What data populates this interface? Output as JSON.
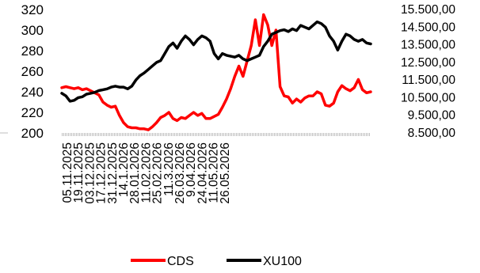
{
  "chart_data": {
    "type": "line",
    "title": "",
    "xlabel": "",
    "ylabel": "",
    "x_tick_labels": [
      "05.11.2025",
      "19.11.2025",
      "03.12.2025",
      "17.12.2025",
      "31.12.2025",
      "14.1.2026",
      "28.01.2026",
      "11.02.2026",
      "25.02.2026",
      "11.3.2026",
      "26.03.2026",
      "9.04.2026",
      "24.04.2026",
      "11.05.2026",
      "26.05.2026"
    ],
    "y_left": {
      "ylim": [
        200,
        320
      ],
      "ticks": [
        "200",
        "220",
        "240",
        "260",
        "280",
        "300",
        "320"
      ]
    },
    "y_right": {
      "ylim": [
        8500,
        15500
      ],
      "ticks": [
        "8.500,00",
        "9.500,00",
        "10.500,00",
        "11.500,00",
        "12.500,00",
        "13.500,00",
        "14.500,00",
        "15.500,00"
      ]
    },
    "grid": false,
    "legend": "bottom",
    "colors": {
      "CDS": "#ff0000",
      "XU100": "#000000"
    },
    "series": [
      {
        "name": "CDS",
        "axis": "left",
        "values": [
          244,
          245,
          244,
          243,
          244,
          242,
          243,
          241,
          239,
          237,
          230,
          227,
          225,
          226,
          217,
          210,
          206,
          205,
          205,
          204,
          204,
          203,
          206,
          210,
          215,
          217,
          220,
          214,
          212,
          215,
          214,
          217,
          220,
          217,
          219,
          214,
          214,
          216,
          218,
          225,
          233,
          243,
          255,
          265,
          255,
          270,
          285,
          310,
          285,
          315,
          305,
          285,
          300,
          245,
          236,
          235,
          229,
          233,
          230,
          234,
          236,
          236,
          240,
          238,
          227,
          226,
          229,
          240,
          246,
          243,
          241,
          244,
          252,
          242,
          239,
          240
        ]
      },
      {
        "name": "XU100",
        "axis": "right",
        "values": [
          10750,
          10600,
          10300,
          10350,
          10500,
          10550,
          10700,
          10750,
          10800,
          10900,
          10950,
          11000,
          11100,
          11150,
          11100,
          11100,
          11000,
          11150,
          11500,
          11750,
          11900,
          12100,
          12300,
          12500,
          12600,
          13000,
          13400,
          13600,
          13300,
          13700,
          14000,
          13800,
          13500,
          13800,
          14000,
          13900,
          13700,
          13000,
          12700,
          13000,
          12900,
          12850,
          12800,
          12900,
          12700,
          12600,
          12700,
          12800,
          12900,
          13400,
          13700,
          14100,
          14200,
          14300,
          14350,
          14250,
          14400,
          14300,
          14600,
          14500,
          14400,
          14600,
          14800,
          14700,
          14500,
          14000,
          13700,
          13200,
          13700,
          14100,
          14000,
          13800,
          13700,
          13800,
          13600,
          13550
        ]
      }
    ]
  }
}
